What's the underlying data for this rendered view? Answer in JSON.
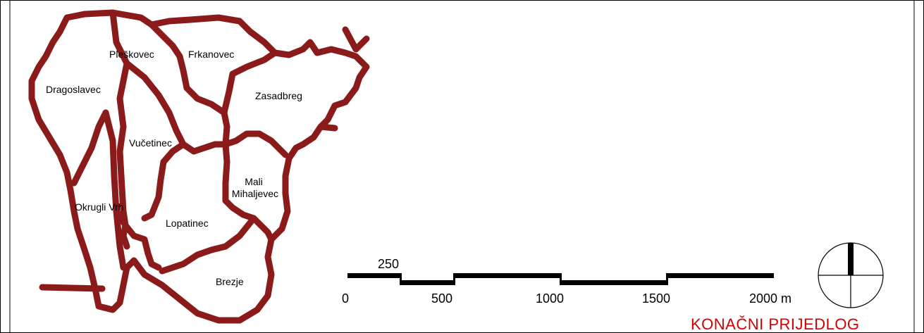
{
  "map": {
    "boundary_color": "#8b1a1a",
    "settlements": [
      {
        "id": "dragoslavec",
        "name": "Dragoslavec"
      },
      {
        "id": "pleskovec",
        "name": "Pleškovec"
      },
      {
        "id": "frkanovec",
        "name": "Frkanovec"
      },
      {
        "id": "zasadbreg",
        "name": "Zasadbreg"
      },
      {
        "id": "vucetinec",
        "name": "Vučetinec"
      },
      {
        "id": "mali-mihaljevec",
        "name": "Mali\nMihaljevec"
      },
      {
        "id": "okrugli-vrh",
        "name": "Okrugli Vrh"
      },
      {
        "id": "lopatinec",
        "name": "Lopatinec"
      },
      {
        "id": "brezje",
        "name": "Brezje"
      }
    ]
  },
  "scale_bar": {
    "top_label": "250",
    "ticks": [
      "0",
      "500",
      "1000",
      "1500",
      "2000 m"
    ]
  },
  "north_arrow": {
    "icon": "north-arrow-icon"
  },
  "title": {
    "text": "KONAČNI PRIJEDLOG",
    "color": "#d40000"
  }
}
